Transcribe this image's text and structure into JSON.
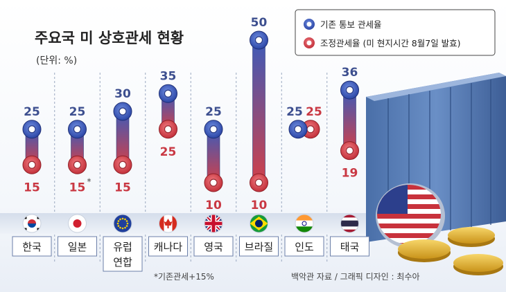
{
  "chart_data": {
    "type": "dumbbell",
    "title": "주요국 미 상호관세 현황",
    "unit": "(단위: %)",
    "categories": [
      "한국",
      "일본",
      "유럽연합",
      "캐나다",
      "영국",
      "브라질",
      "인도",
      "태국"
    ],
    "category_lines": [
      [
        "한국"
      ],
      [
        "일본"
      ],
      [
        "유럽",
        "연합"
      ],
      [
        "캐나다"
      ],
      [
        "영국"
      ],
      [
        "브라질"
      ],
      [
        "인도"
      ],
      [
        "태국"
      ]
    ],
    "series": [
      {
        "name": "기존 통보 관세율",
        "color": "#3d4f8f",
        "values": [
          25,
          25,
          30,
          35,
          25,
          50,
          25,
          36
        ]
      },
      {
        "name": "조정관세율 (미 현지시간 8월7일 발효)",
        "color": "#c93843",
        "values": [
          15,
          15,
          15,
          25,
          10,
          10,
          25,
          19
        ]
      }
    ],
    "value_labels_existing": [
      "25",
      "25",
      "30",
      "35",
      "25",
      "50",
      "25",
      "36"
    ],
    "value_labels_adjusted": [
      "15",
      "15",
      "15",
      "25",
      "10",
      "10",
      "25",
      "19"
    ],
    "adjusted_markers": [
      "",
      "*",
      "",
      "",
      "",
      "",
      "",
      ""
    ],
    "flags": [
      "korea-flag-icon",
      "japan-flag-icon",
      "eu-flag-icon",
      "canada-flag-icon",
      "uk-flag-icon",
      "brazil-flag-icon",
      "india-flag-icon",
      "thailand-flag-icon"
    ],
    "ylim": [
      10,
      50
    ],
    "footnote": "*기존관세+15%",
    "source": "백악관 자료 / 그래픽 디자인 : 최수아"
  }
}
